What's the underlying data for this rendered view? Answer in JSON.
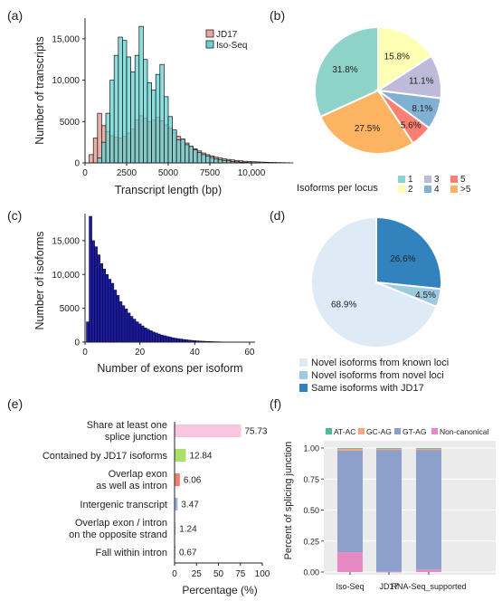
{
  "chart_data": [
    {
      "panel": "(a)",
      "type": "histogram",
      "xlabel": "Transcript length (bp)",
      "ylabel": "Number of transcripts",
      "xlim": [
        0,
        10000
      ],
      "ylim": [
        0,
        17500
      ],
      "xticks": [
        "0",
        "2500",
        "5000",
        "7500",
        "10,000"
      ],
      "yticks": [
        "0",
        "5000",
        "10,000",
        "15,000"
      ],
      "legend": {
        "position": "top-right",
        "items": [
          {
            "name": "JD17",
            "color": "#e9a6a0"
          },
          {
            "name": "Iso-Seq",
            "color": "#66d2d2"
          }
        ]
      },
      "bin_width": 250,
      "series": [
        {
          "name": "JD17",
          "color": "#e9a6a0",
          "bins_start": 0,
          "values": [
            0,
            1000,
            3000,
            6000,
            4500,
            3800,
            3300,
            3100,
            3000,
            3200,
            3600,
            4100,
            5200,
            5700,
            5400,
            5000,
            5200,
            5500,
            5100,
            4600,
            4200,
            3700,
            3200,
            2800,
            2400,
            2000,
            1700,
            1450,
            1200,
            1000,
            850,
            700,
            600,
            500,
            420,
            360,
            300,
            250,
            200,
            170,
            140,
            120,
            100,
            80,
            60,
            50,
            40,
            30,
            20,
            10
          ]
        },
        {
          "name": "Iso-Seq",
          "color": "#66d2d2",
          "bins_start": 0,
          "values": [
            0,
            0,
            0,
            600,
            2500,
            6000,
            10000,
            13000,
            15200,
            14800,
            12800,
            11000,
            13000,
            16500,
            12500,
            9700,
            8800,
            10700,
            11900,
            8000,
            5600,
            4000,
            2800,
            2900,
            2200,
            2000,
            1600,
            1250,
            1000,
            850,
            650,
            500,
            400,
            300,
            250,
            180,
            130,
            90,
            60,
            40,
            20,
            10,
            0,
            0,
            0,
            0,
            0,
            0,
            0,
            0
          ]
        }
      ]
    },
    {
      "panel": "(b)",
      "type": "pie",
      "legend_title": "Isoforms per locus",
      "legend": {
        "position": "bottom"
      },
      "slices": [
        {
          "label": "1",
          "value": 31.8,
          "text": "31.8%",
          "color": "#8dd3c7"
        },
        {
          "label": "2",
          "value": 15.8,
          "text": "15.8%",
          "color": "#ffffb3"
        },
        {
          "label": "3",
          "value": 11.1,
          "text": "11.1%",
          "color": "#bebada"
        },
        {
          "label": "4",
          "value": 8.1,
          "text": "8.1%",
          "color": "#80b1d3"
        },
        {
          "label": "5",
          "value": 5.6,
          "text": "5.6%",
          "color": "#fb8072"
        },
        {
          "label": ">5",
          "value": 27.5,
          "text": "27.5%",
          "color": "#fdb462"
        }
      ]
    },
    {
      "panel": "(c)",
      "type": "histogram",
      "xlabel": "Number of exons per isoform",
      "ylabel": "Number of isoforms",
      "xlim": [
        0,
        62
      ],
      "ylim": [
        0,
        19000
      ],
      "xticks": [
        "0",
        "20",
        "40",
        "60"
      ],
      "yticks": [
        "0",
        "5000",
        "10,000",
        "15,000"
      ],
      "bar_color": "#1c1c9a",
      "x_start": 1,
      "values": [
        3000,
        18600,
        15000,
        14100,
        12900,
        11600,
        10800,
        10000,
        9300,
        8700,
        7700,
        6900,
        6000,
        5400,
        4900,
        4300,
        3800,
        3400,
        3000,
        2700,
        2400,
        2100,
        1900,
        1700,
        1500,
        1350,
        1200,
        1050,
        950,
        850,
        750,
        650,
        580,
        520,
        460,
        400,
        350,
        300,
        260,
        220,
        190,
        160,
        140,
        120,
        100,
        85,
        70,
        60,
        50,
        40,
        35,
        30,
        25,
        20,
        15,
        10,
        8,
        5
      ]
    },
    {
      "panel": "(d)",
      "type": "pie",
      "legend": {
        "position": "bottom"
      },
      "slices": [
        {
          "label": "Novel isoforms from known loci",
          "value": 68.9,
          "text": "68.9%",
          "color": "#deebf7"
        },
        {
          "label": "Novel isoforms from novel loci",
          "value": 4.5,
          "text": "4.5%",
          "color": "#9ecae1"
        },
        {
          "label": "Same isoforms with JD17",
          "value": 26.6,
          "text": "26.6%",
          "color": "#3182bd"
        }
      ]
    },
    {
      "panel": "(e)",
      "type": "bar",
      "orientation": "horizontal",
      "xlabel": "Percentage (%)",
      "xlim": [
        0,
        100
      ],
      "xticks": [
        "0",
        "25",
        "50",
        "75",
        "100"
      ],
      "categories": [
        [
          "Share at least one",
          "splice junction"
        ],
        [
          "Contained by JD17 isoforms"
        ],
        [
          "Overlap exon",
          "as well as intron"
        ],
        [
          "Intergenic transcript"
        ],
        [
          "Overlap exon / intron",
          "on the opposite strand"
        ],
        [
          "Fall within intron"
        ]
      ],
      "values": [
        75.73,
        12.84,
        6.06,
        3.47,
        1.24,
        0.67
      ],
      "value_labels": [
        "75.73",
        "12.84",
        "6.06",
        "3.47",
        "1.24",
        "0.67"
      ],
      "colors": [
        "#f9c6e0",
        "#a8e06a",
        "#f08070",
        "#9cb8d8",
        "#cccccc",
        "#cccccc"
      ]
    },
    {
      "panel": "(f)",
      "type": "stacked_bar",
      "ylabel": "Percent of splicing junction",
      "ylim": [
        0,
        1.0
      ],
      "yticks": [
        "0.00",
        "0.25",
        "0.50",
        "0.75",
        "1.00"
      ],
      "categories": [
        "Iso-Seq",
        "JD17",
        "RNA-Seq_supported"
      ],
      "legend": {
        "position": "top",
        "items": [
          {
            "name": "AT-AC",
            "color": "#4db89a"
          },
          {
            "name": "GC-AG",
            "color": "#f4a582"
          },
          {
            "name": "GT-AG",
            "color": "#8da0cb"
          },
          {
            "name": "Non-canonical",
            "color": "#e78ac3"
          }
        ]
      },
      "series": [
        {
          "name": "Non-canonical",
          "color": "#e78ac3",
          "values": [
            0.16,
            0.002,
            0.02
          ]
        },
        {
          "name": "GT-AG",
          "color": "#8da0cb",
          "values": [
            0.82,
            0.983,
            0.965
          ]
        },
        {
          "name": "GC-AG",
          "color": "#f4a582",
          "values": [
            0.018,
            0.013,
            0.013
          ]
        },
        {
          "name": "AT-AC",
          "color": "#4db89a",
          "values": [
            0.002,
            0.002,
            0.002
          ]
        }
      ]
    }
  ]
}
